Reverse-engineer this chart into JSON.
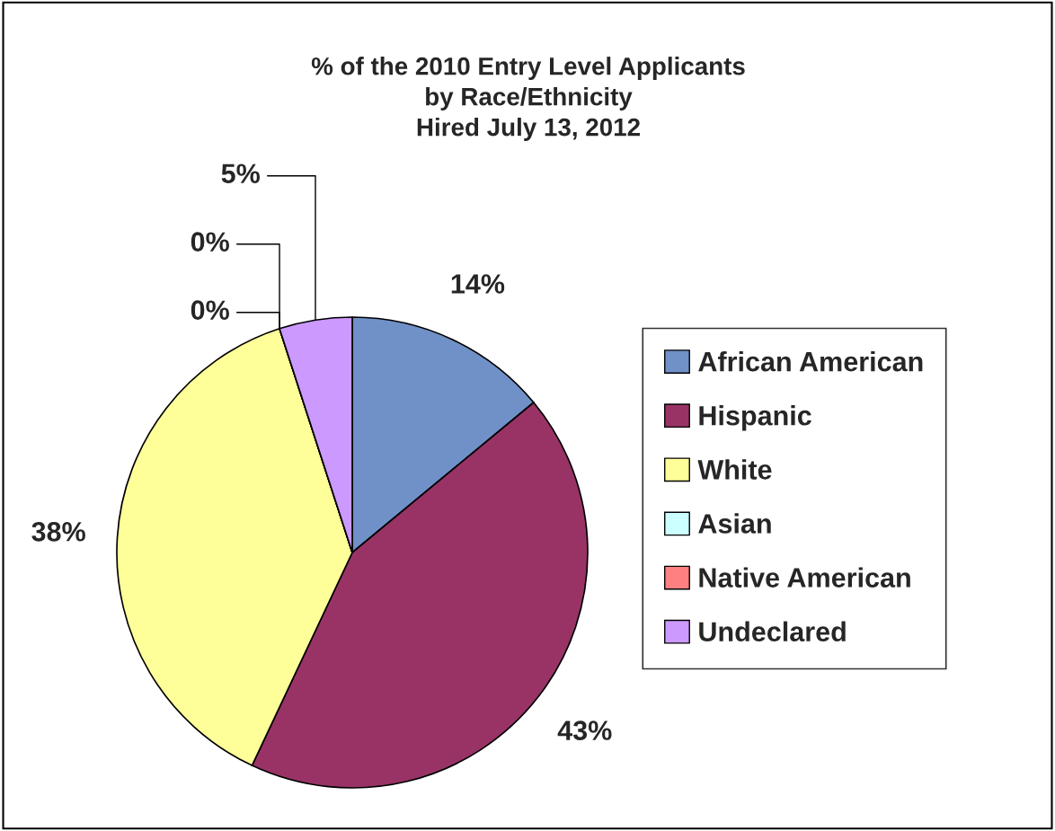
{
  "chart_data": {
    "type": "pie",
    "title": "% of the 2010 Entry Level Applicants\nby Race/Ethnicity\nHired July 13, 2012",
    "categories": [
      "African American",
      "Hispanic",
      "White",
      "Asian",
      "Native American",
      "Undeclared"
    ],
    "values": [
      14,
      43,
      38,
      0,
      0,
      5
    ],
    "colors": [
      "#7090c8",
      "#993366",
      "#ffff99",
      "#ccffff",
      "#ff8080",
      "#cc99ff"
    ],
    "value_labels": [
      "14%",
      "43%",
      "38%",
      "0%",
      "0%",
      "5%"
    ],
    "legend": "right"
  }
}
